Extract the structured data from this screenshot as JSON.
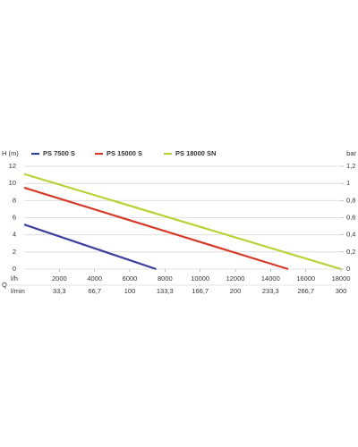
{
  "chart_data": {
    "type": "line",
    "y_label": "H (m)",
    "y2_label": "bar",
    "x_label": "l/h",
    "x_symbol": "Q",
    "x2_label": "l/min",
    "series": [
      {
        "name": "PS 7500 S",
        "color": "#3b3f9c",
        "x": [
          0,
          7500
        ],
        "values": [
          5.2,
          0
        ]
      },
      {
        "name": "PS 15000 S",
        "color": "#d63a2a",
        "x": [
          0,
          15000
        ],
        "values": [
          9.5,
          0
        ]
      },
      {
        "name": "PS 18000 SN",
        "color": "#b5d334",
        "x": [
          0,
          18000
        ],
        "values": [
          11.1,
          0
        ]
      }
    ],
    "xlim": [
      0,
      18000
    ],
    "xticks": [
      2000,
      4000,
      6000,
      8000,
      10000,
      12000,
      14000,
      16000,
      18000
    ],
    "x2lim": [
      0,
      300
    ],
    "x2ticks": [
      {
        "value": 33.3,
        "label": "33,3"
      },
      {
        "value": 66.7,
        "label": "66,7"
      },
      100,
      {
        "value": 133.3,
        "label": "133,3"
      },
      {
        "value": 166.7,
        "label": "166,7"
      },
      200,
      {
        "value": 233.3,
        "label": "233,3"
      },
      {
        "value": 266.7,
        "label": "266,7"
      },
      300
    ],
    "ylim": [
      0,
      12
    ],
    "yticks": [
      0,
      2,
      4,
      6,
      8,
      10,
      12
    ],
    "y2lim": [
      0,
      1.2
    ],
    "y2ticks": [
      0,
      {
        "value": 0.2,
        "label": "0,2"
      },
      {
        "value": 0.4,
        "label": "0,4"
      },
      {
        "value": 0.6,
        "label": "0,6"
      },
      {
        "value": 0.8,
        "label": "0,8"
      },
      1,
      {
        "value": 1.2,
        "label": "1,2"
      }
    ],
    "grid": true
  }
}
